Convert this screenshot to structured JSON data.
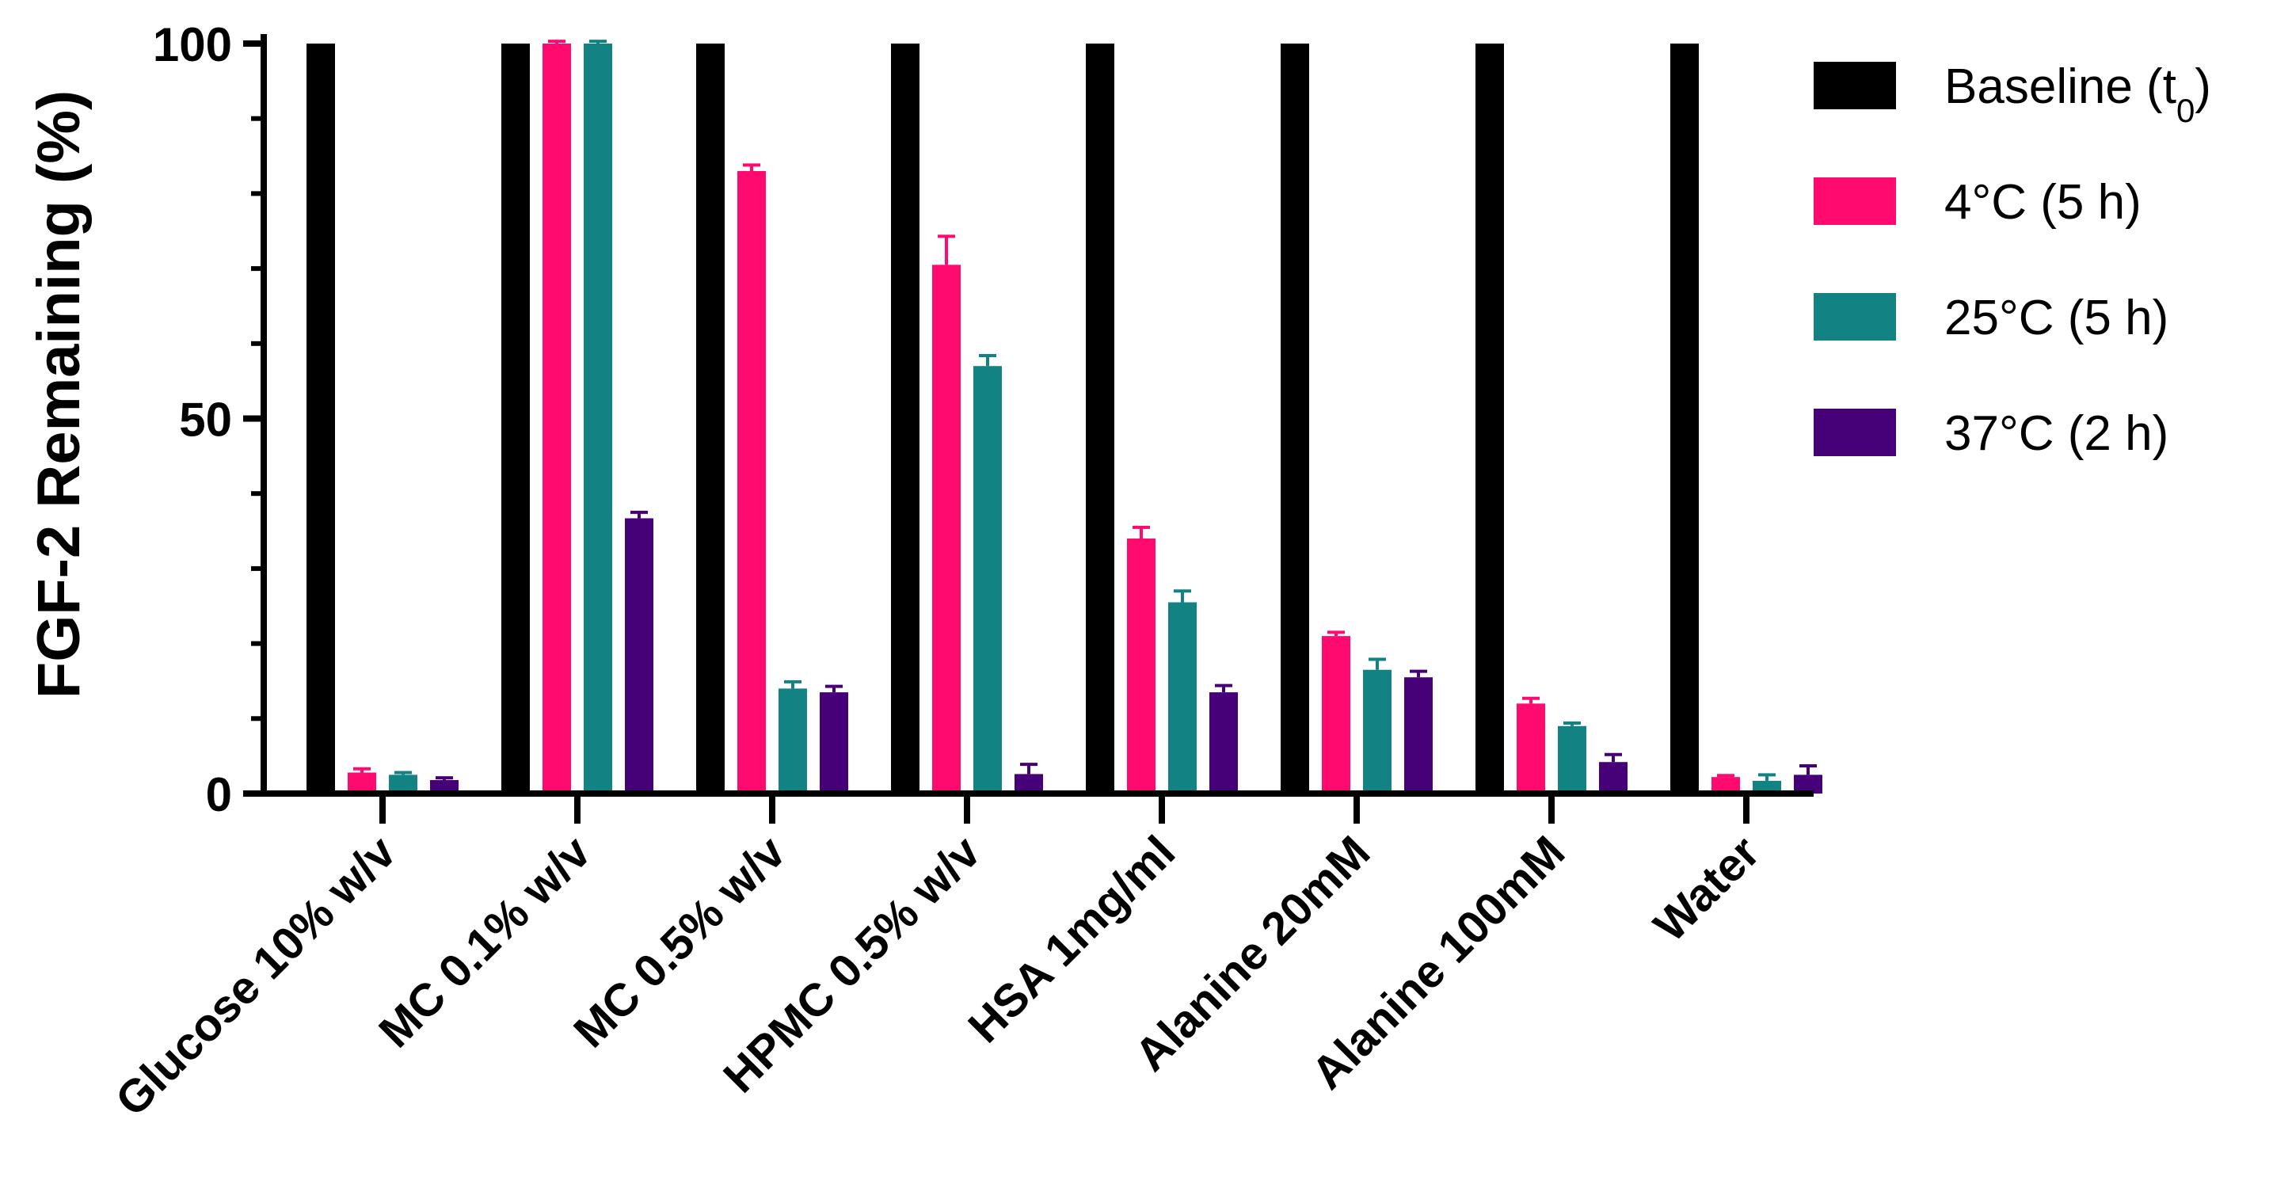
{
  "chart_data": {
    "type": "bar",
    "ylabel": "FGF-2 Remaining (%)",
    "ylim": [
      0,
      100
    ],
    "yticks": [
      0,
      50,
      100
    ],
    "grid": false,
    "legend_position": "right",
    "categories": [
      "Glucose 10% w/v",
      "MC 0.1% w/v",
      "MC 0.5% w/v",
      "HPMC 0.5% w/v",
      "HSA 1mg/ml",
      "Alanine 20mM",
      "Alanine 100mM",
      "Water"
    ],
    "series": [
      {
        "name": "Baseline (t",
        "name_sub": "0",
        "name_suffix": ")",
        "color": "#000000",
        "values": [
          100,
          100,
          100,
          100,
          100,
          100,
          100,
          100
        ],
        "errors": [
          0,
          0,
          0,
          0,
          0,
          0,
          0,
          0
        ]
      },
      {
        "name": "4°C (5 h)",
        "color": "#ff0a6e",
        "values": [
          2.8,
          100,
          83,
          70.5,
          34,
          21,
          12,
          2.2
        ],
        "errors": [
          0.5,
          0.3,
          0.8,
          3.8,
          1.5,
          0.5,
          0.7,
          0.2
        ]
      },
      {
        "name": "25°C (5 h)",
        "color": "#128282",
        "values": [
          2.5,
          100,
          14,
          57,
          25.5,
          16.5,
          9,
          1.7
        ],
        "errors": [
          0.3,
          0.3,
          0.9,
          1.4,
          1.5,
          1.4,
          0.4,
          0.8
        ]
      },
      {
        "name": "37°C (2 h)",
        "color": "#460078",
        "values": [
          1.8,
          36.7,
          13.5,
          2.6,
          13.5,
          15.5,
          4.2,
          2.5
        ],
        "errors": [
          0.3,
          0.8,
          0.8,
          1.3,
          0.9,
          0.8,
          1.0,
          1.2
        ]
      }
    ]
  }
}
